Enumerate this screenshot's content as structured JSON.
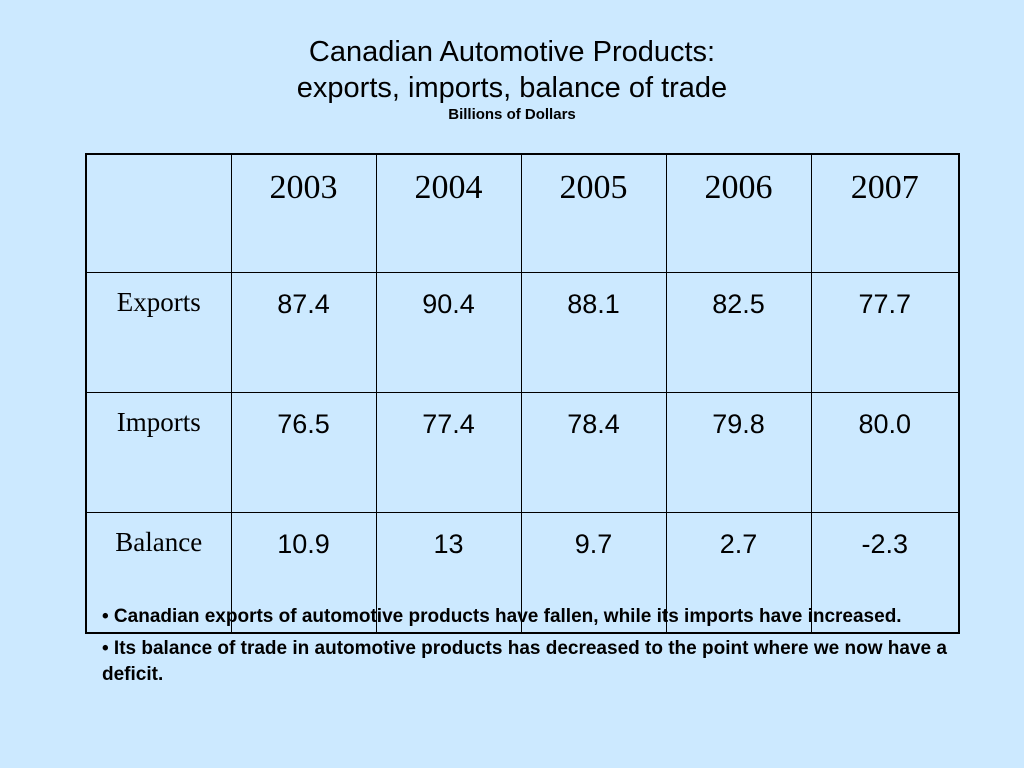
{
  "title": {
    "line1": "Canadian Automotive Products:",
    "line2": "exports, imports, balance of trade",
    "subtitle": "Billions of Dollars"
  },
  "table": {
    "corner": "",
    "years": [
      "2003",
      "2004",
      "2005",
      "2006",
      "2007"
    ],
    "rows": [
      {
        "label": "Exports",
        "values": [
          "87.4",
          "90.4",
          "88.1",
          "82.5",
          "77.7"
        ]
      },
      {
        "label": "Imports",
        "values": [
          "76.5",
          "77.4",
          "78.4",
          "79.8",
          "80.0"
        ]
      },
      {
        "label": "Balance",
        "values": [
          "10.9",
          "13",
          "9.7",
          "2.7",
          "-2.3"
        ]
      }
    ]
  },
  "notes": [
    "• Canadian exports of automotive products have fallen, while its imports have increased.",
    "• Its balance of trade in automotive products has decreased to the point where we now have a deficit."
  ],
  "colors": {
    "background": "#cce9ff",
    "text": "#000000"
  }
}
